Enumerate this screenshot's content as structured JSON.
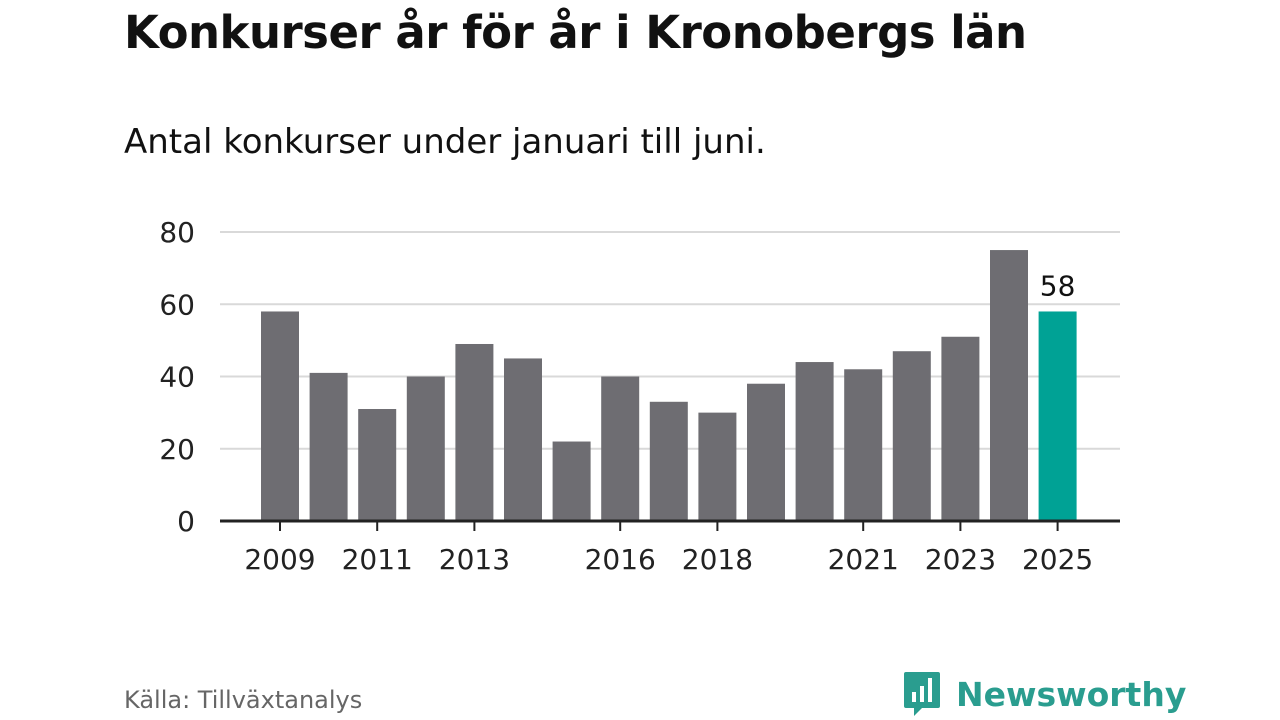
{
  "title": "Konkurser år för år i Kronobergs län",
  "subtitle": "Antal konkurser under januari till juni.",
  "source": "Källa: Tillväxtanalys",
  "brand": {
    "name": "Newsworthy",
    "icon": "newsworthy-logo-icon"
  },
  "colors": {
    "bar": "#6e6d72",
    "highlight": "#00a295",
    "grid": "#d9d9d9",
    "axis": "#222222",
    "brand": "#2a9d8f"
  },
  "chart_data": {
    "type": "bar",
    "title": "Konkurser år för år i Kronobergs län",
    "subtitle": "Antal konkurser under januari till juni.",
    "categories": [
      "2009",
      "2010",
      "2011",
      "2012",
      "2013",
      "2014",
      "2015",
      "2016",
      "2017",
      "2018",
      "2019",
      "2020",
      "2021",
      "2022",
      "2023",
      "2024",
      "2025"
    ],
    "values": [
      58,
      41,
      31,
      40,
      49,
      45,
      22,
      40,
      33,
      30,
      38,
      44,
      42,
      47,
      51,
      75,
      58
    ],
    "highlight_index": 16,
    "data_labels": [
      {
        "category": "2025",
        "text": "58"
      }
    ],
    "xtick_labels": [
      "2009",
      "2011",
      "2013",
      "2016",
      "2018",
      "2021",
      "2023",
      "2025"
    ],
    "yticks": [
      0,
      20,
      40,
      60,
      80
    ],
    "ylim": [
      0,
      80
    ],
    "xlabel": "",
    "ylabel": "",
    "grid": true
  }
}
